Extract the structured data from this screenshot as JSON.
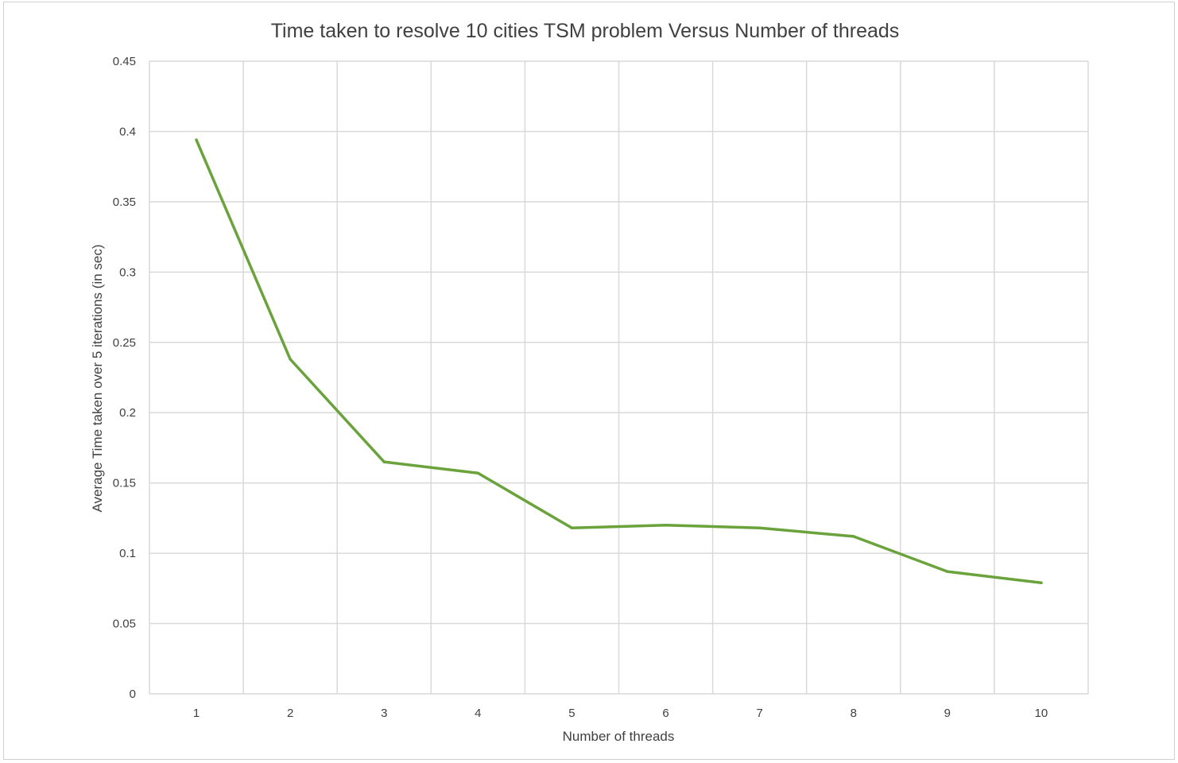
{
  "chart_data": {
    "type": "line",
    "title": "Time taken to resolve 10 cities TSM problem Versus Number of threads",
    "xlabel": "Number of threads",
    "ylabel": "Average Time taken over 5 iterations (in sec)",
    "categories": [
      "1",
      "2",
      "3",
      "4",
      "5",
      "6",
      "7",
      "8",
      "9",
      "10"
    ],
    "series": [
      {
        "values": [
          0.394,
          0.238,
          0.165,
          0.157,
          0.118,
          0.12,
          0.118,
          0.112,
          0.087,
          0.079
        ],
        "color": "#6aa23b"
      }
    ],
    "ylim": [
      0,
      0.45
    ],
    "yticks": [
      "0",
      "0.05",
      "0.1",
      "0.15",
      "0.2",
      "0.25",
      "0.3",
      "0.35",
      "0.4",
      "0.45"
    ],
    "grid": true,
    "legend": "none",
    "grid_color": "#d9d9d9",
    "text_color": "#404040"
  }
}
